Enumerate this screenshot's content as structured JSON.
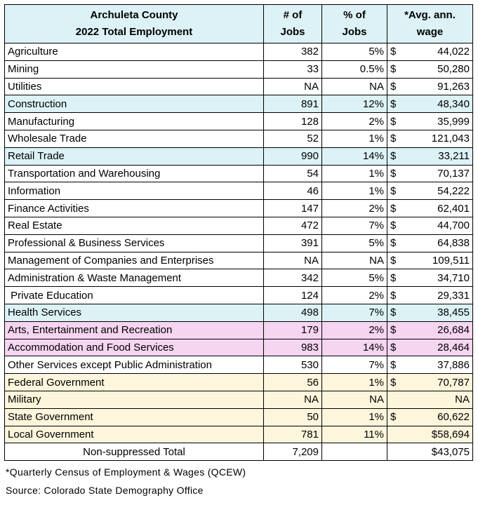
{
  "header": {
    "title_lines": [
      "Archuleta County",
      "2022 Total Employment"
    ],
    "jobs": [
      "# of",
      "Jobs"
    ],
    "pct": [
      "% of",
      "Jobs"
    ],
    "wage": [
      "*Avg. ann.",
      "wage"
    ],
    "fill": "#dcf2f6"
  },
  "table": {
    "rows": [
      {
        "industry": "Agriculture",
        "jobs": "382",
        "pct": "5%",
        "currency": "$",
        "wage": "44,022"
      },
      {
        "industry": "Mining",
        "jobs": "33",
        "pct": "0.5%",
        "currency": "$",
        "wage": "50,280"
      },
      {
        "industry": "Utilities",
        "jobs": "NA",
        "pct": "NA",
        "currency": "$",
        "wage": "91,263"
      },
      {
        "industry": "Construction",
        "jobs": "891",
        "pct": "12%",
        "currency": "$",
        "wage": "48,340",
        "fill": "#dcf2f6"
      },
      {
        "industry": "Manufacturing",
        "jobs": "128",
        "pct": "2%",
        "currency": "$",
        "wage": "35,999"
      },
      {
        "industry": "Wholesale Trade",
        "jobs": "52",
        "pct": "1%",
        "currency": "$",
        "wage": "121,043"
      },
      {
        "industry": "Retail Trade",
        "jobs": "990",
        "pct": "14%",
        "currency": "$",
        "wage": "33,211",
        "fill": "#dcf2f6"
      },
      {
        "industry": "Transportation and Warehousing",
        "jobs": "54",
        "pct": "1%",
        "currency": "$",
        "wage": "70,137"
      },
      {
        "industry": "Information",
        "jobs": "46",
        "pct": "1%",
        "currency": "$",
        "wage": "54,222"
      },
      {
        "industry": "Finance Activities",
        "jobs": "147",
        "pct": "2%",
        "currency": "$",
        "wage": "62,401"
      },
      {
        "industry": "Real Estate",
        "jobs": "472",
        "pct": "7%",
        "currency": "$",
        "wage": "44,700"
      },
      {
        "industry": "Professional & Business Services",
        "jobs": "391",
        "pct": "5%",
        "currency": "$",
        "wage": "64,838"
      },
      {
        "industry": "Management of Companies and Enterprises",
        "jobs": "NA",
        "pct": "NA",
        "currency": "$",
        "wage": "109,511"
      },
      {
        "industry": "Administration & Waste Management",
        "jobs": "342",
        "pct": "5%",
        "currency": "$",
        "wage": "34,710"
      },
      {
        "industry": " Private Education",
        "jobs": "124",
        "pct": "2%",
        "currency": "$",
        "wage": "29,331"
      },
      {
        "industry": "Health Services",
        "jobs": "498",
        "pct": "7%",
        "currency": "$",
        "wage": "38,455",
        "fill": "#dcf2f6"
      },
      {
        "industry": "Arts, Entertainment and Recreation",
        "jobs": "179",
        "pct": "2%",
        "currency": "$",
        "wage": "26,684",
        "fill": "#f6d5f1"
      },
      {
        "industry": "Accommodation and Food Services",
        "jobs": "983",
        "pct": "14%",
        "currency": "$",
        "wage": "28,464",
        "fill": "#f6d5f1"
      },
      {
        "industry": "Other Services except Public Administration",
        "jobs": "530",
        "pct": "7%",
        "currency": "$",
        "wage": "37,886"
      },
      {
        "industry": "Federal Government",
        "jobs": "56",
        "pct": "1%",
        "currency": "$",
        "wage": "70,787",
        "fill": "#fdf5dc"
      },
      {
        "industry": "Military",
        "jobs": "NA",
        "pct": "NA",
        "wage": "NA",
        "fill": "#fdf5dc"
      },
      {
        "industry": "State Government",
        "jobs": "50",
        "pct": "1%",
        "currency": "$",
        "wage": "60,622",
        "fill": "#fdf5dc"
      },
      {
        "industry": "Local Government",
        "jobs": "781",
        "pct": "11%",
        "wage": "$58,694",
        "fill": "#fdf5dc"
      }
    ],
    "total": {
      "label": "Non-suppressed Total",
      "jobs": "7,209",
      "wage": "$43,075"
    }
  },
  "footer": {
    "note": "*Quarterly Census of Employment & Wages (QCEW)",
    "source": "Source: Colorado State Demography Office"
  }
}
